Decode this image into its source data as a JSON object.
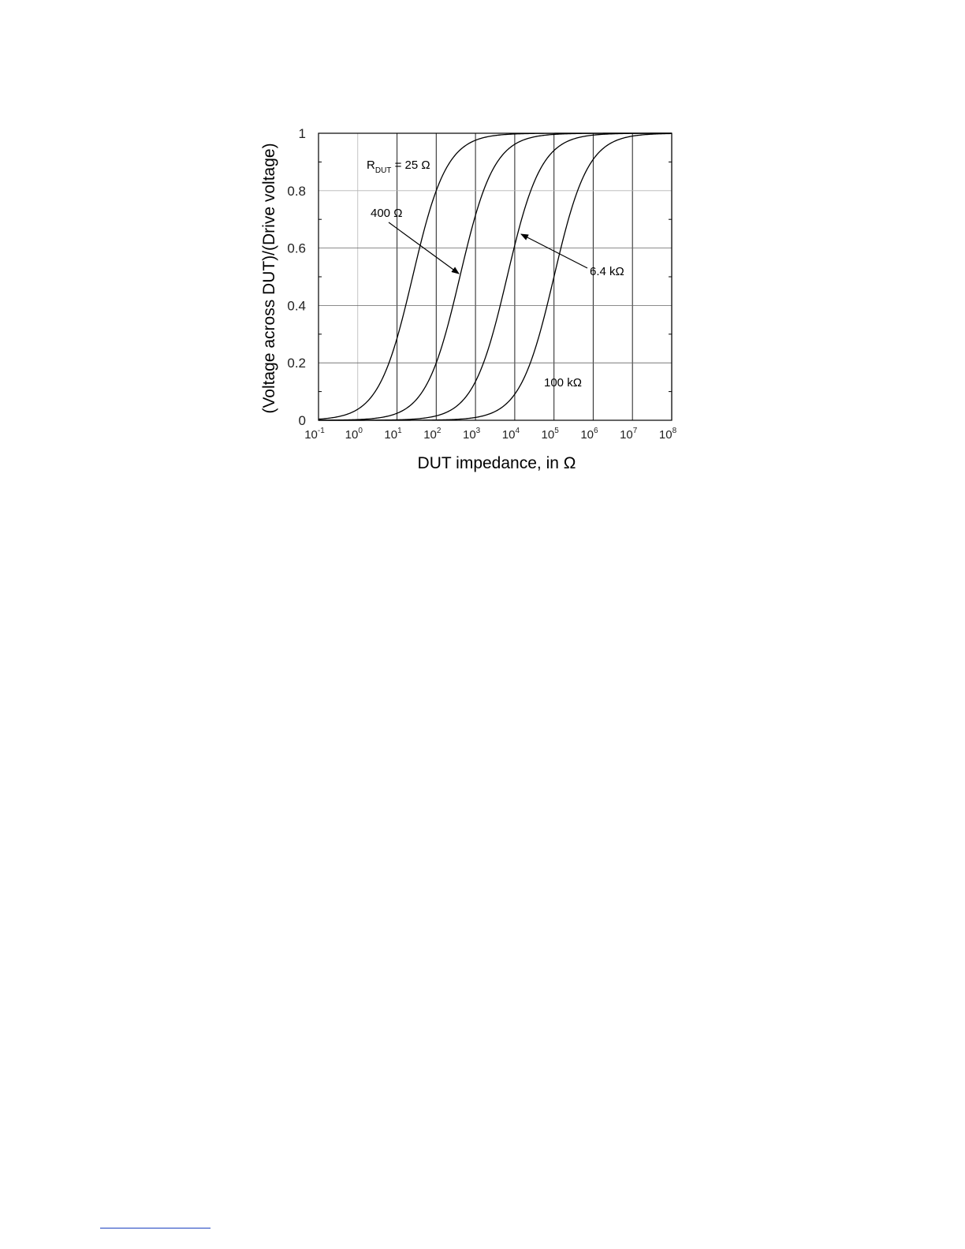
{
  "chart_data": {
    "type": "line",
    "x_scale": "log",
    "xlabel": "DUT impedance, in Ω",
    "ylabel": "(Voltage across DUT)/(Drive voltage)",
    "xlim": [
      0.1,
      100000000
    ],
    "ylim": [
      0,
      1
    ],
    "grid": true,
    "x_ticks": [
      {
        "base": "10",
        "exp": "-1",
        "value": 0.1
      },
      {
        "base": "10",
        "exp": "0",
        "value": 1
      },
      {
        "base": "10",
        "exp": "1",
        "value": 10
      },
      {
        "base": "10",
        "exp": "2",
        "value": 100
      },
      {
        "base": "10",
        "exp": "3",
        "value": 1000
      },
      {
        "base": "10",
        "exp": "4",
        "value": 10000
      },
      {
        "base": "10",
        "exp": "5",
        "value": 100000
      },
      {
        "base": "10",
        "exp": "6",
        "value": 1000000
      },
      {
        "base": "10",
        "exp": "7",
        "value": 10000000
      },
      {
        "base": "10",
        "exp": "8",
        "value": 100000000
      }
    ],
    "y_ticks": [
      {
        "label": "0",
        "value": 0
      },
      {
        "label": "0.2",
        "value": 0.2
      },
      {
        "label": "0.4",
        "value": 0.4
      },
      {
        "label": "0.6",
        "value": 0.6
      },
      {
        "label": "0.8",
        "value": 0.8
      },
      {
        "label": "1",
        "value": 1
      }
    ],
    "series": [
      {
        "r_dut": 25,
        "x": [
          0.1,
          1,
          10,
          25,
          100,
          1000,
          10000,
          100000000
        ],
        "y": [
          0.004,
          0.038,
          0.286,
          0.5,
          0.8,
          0.976,
          0.9975,
          1.0
        ]
      },
      {
        "r_dut": 400,
        "x": [
          0.1,
          1,
          10,
          100,
          400,
          1000,
          10000,
          100000000
        ],
        "y": [
          0.0003,
          0.0025,
          0.024,
          0.2,
          0.5,
          0.714,
          0.962,
          1.0
        ]
      },
      {
        "r_dut": 6400,
        "x": [
          0.1,
          10,
          100,
          1000,
          6400,
          10000,
          100000,
          100000000
        ],
        "y": [
          0.0,
          0.0016,
          0.015,
          0.135,
          0.5,
          0.61,
          0.94,
          1.0
        ]
      },
      {
        "r_dut": 100000,
        "x": [
          0.1,
          100,
          1000,
          10000,
          100000,
          1000000,
          10000000,
          100000000
        ],
        "y": [
          0.0,
          0.001,
          0.01,
          0.091,
          0.5,
          0.909,
          0.99,
          0.999
        ]
      }
    ],
    "annotations": [
      {
        "main": "R",
        "sub": "DUT",
        "rest": " = 25 Ω"
      },
      {
        "text": "400 Ω"
      },
      {
        "text": "6.4 kΩ"
      },
      {
        "text": "100 kΩ"
      }
    ]
  }
}
